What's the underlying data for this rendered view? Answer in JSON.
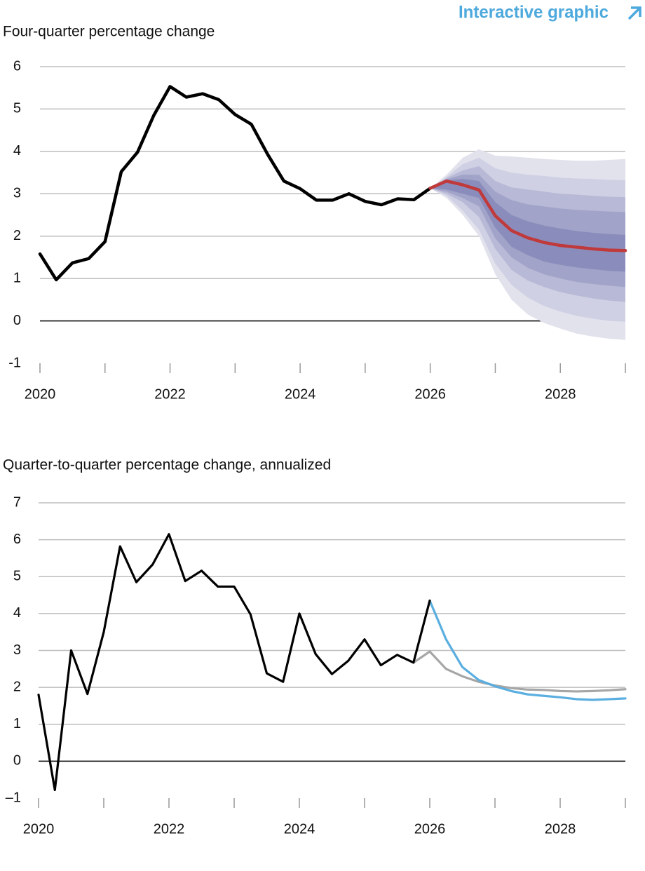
{
  "header": {
    "link": "Interactive graphic"
  },
  "chart_data": [
    {
      "type": "line",
      "title": "Four-quarter percentage change",
      "xlim": [
        2020,
        2029
      ],
      "xticks": [
        2020,
        2022,
        2024,
        2026,
        2028
      ],
      "xminor_ticks": [
        2021,
        2023,
        2025,
        2027,
        2029
      ],
      "ylim": [
        -1,
        6
      ],
      "yticks": [
        -1,
        0,
        1,
        2,
        3,
        4,
        5,
        6
      ],
      "grid": true,
      "zero_line": true,
      "series": [
        {
          "color": "#000000",
          "x": [
            2020,
            2020.25,
            2020.5,
            2020.75,
            2021,
            2021.25,
            2021.5,
            2021.75,
            2022,
            2022.25,
            2022.5,
            2022.75,
            2023,
            2023.25,
            2023.5,
            2023.75,
            2024,
            2024.25,
            2024.5,
            2024.75,
            2025,
            2025.25,
            2025.5,
            2025.75,
            2026
          ],
          "values": [
            1.58,
            0.97,
            1.37,
            1.47,
            1.87,
            3.52,
            3.98,
            4.85,
            5.53,
            5.28,
            5.36,
            5.22,
            4.87,
            4.64,
            3.93,
            3.3,
            3.12,
            2.85,
            2.85,
            3.0,
            2.82,
            2.74,
            2.88,
            2.86,
            3.13
          ]
        },
        {
          "color": "#c0393b",
          "x": [
            2026,
            2026.25,
            2026.5,
            2026.75,
            2027,
            2027.25,
            2027.5,
            2027.75,
            2028,
            2028.25,
            2028.5,
            2028.75,
            2029
          ],
          "values": [
            3.13,
            3.3,
            3.21,
            3.09,
            2.48,
            2.13,
            1.96,
            1.85,
            1.78,
            1.74,
            1.7,
            1.67,
            1.66
          ]
        }
      ],
      "fan": {
        "x": [
          2026,
          2026.25,
          2026.5,
          2026.75,
          2027,
          2027.25,
          2027.5,
          2027.75,
          2028,
          2028.25,
          2028.5,
          2028.75,
          2029
        ],
        "bands": [
          {
            "color": "#e2e2ed",
            "upper": [
              3.13,
              3.45,
              3.85,
              4.05,
              3.9,
              3.88,
              3.85,
              3.82,
              3.8,
              3.78,
              3.78,
              3.8,
              3.82
            ],
            "lower": [
              3.13,
              2.9,
              2.5,
              2.0,
              1.1,
              0.5,
              0.15,
              -0.05,
              -0.18,
              -0.3,
              -0.37,
              -0.42,
              -0.45
            ]
          },
          {
            "color": "#cfd0e3",
            "upper": [
              3.13,
              3.4,
              3.7,
              3.85,
              3.6,
              3.5,
              3.45,
              3.42,
              3.38,
              3.36,
              3.35,
              3.33,
              3.32
            ],
            "lower": [
              3.13,
              2.95,
              2.6,
              2.15,
              1.35,
              0.85,
              0.55,
              0.35,
              0.22,
              0.12,
              0.05,
              0.0,
              -0.02
            ]
          },
          {
            "color": "#b8b9d6",
            "upper": [
              3.13,
              3.37,
              3.55,
              3.65,
              3.3,
              3.15,
              3.1,
              3.05,
              3.0,
              2.98,
              2.95,
              2.93,
              2.92
            ],
            "lower": [
              3.13,
              3.0,
              2.8,
              2.45,
              1.7,
              1.2,
              0.95,
              0.8,
              0.68,
              0.6,
              0.53,
              0.48,
              0.45
            ]
          },
          {
            "color": "#a1a3c8",
            "upper": [
              3.13,
              3.34,
              3.45,
              3.45,
              3.05,
              2.85,
              2.75,
              2.7,
              2.65,
              2.62,
              2.6,
              2.58,
              2.57
            ],
            "lower": [
              3.13,
              3.05,
              2.9,
              2.7,
              1.95,
              1.5,
              1.25,
              1.1,
              1.0,
              0.92,
              0.87,
              0.83,
              0.8
            ]
          },
          {
            "color": "#8a8dbb",
            "upper": [
              3.13,
              3.32,
              3.35,
              3.3,
              2.8,
              2.5,
              2.35,
              2.25,
              2.18,
              2.12,
              2.08,
              2.05,
              2.03
            ],
            "lower": [
              3.13,
              3.1,
              3.0,
              2.9,
              2.2,
              1.75,
              1.55,
              1.4,
              1.32,
              1.26,
              1.22,
              1.18,
              1.16
            ]
          }
        ]
      }
    },
    {
      "type": "line",
      "title": "Quarter-to-quarter percentage change, annualized",
      "xlim": [
        2020,
        2029
      ],
      "xticks": [
        2020,
        2022,
        2024,
        2026,
        2028
      ],
      "xminor_ticks": [
        2021,
        2023,
        2025,
        2027,
        2029
      ],
      "ylim": [
        -1,
        7
      ],
      "yticks": [
        {
          "value": -1,
          "label": "–1"
        },
        0,
        1,
        2,
        3,
        4,
        5,
        6,
        7
      ],
      "grid": true,
      "zero_line": true,
      "series": [
        {
          "color": "#a6a6a6",
          "x": [
            2025.75,
            2026,
            2026.25,
            2026.5,
            2026.75,
            2027,
            2027.25,
            2027.5,
            2027.75,
            2028,
            2028.25,
            2028.5,
            2028.75,
            2029
          ],
          "values": [
            2.67,
            2.97,
            2.5,
            2.3,
            2.15,
            2.05,
            1.98,
            1.94,
            1.93,
            1.9,
            1.89,
            1.9,
            1.92,
            1.95
          ]
        },
        {
          "color": "#5aaee0",
          "x": [
            2026,
            2026.25,
            2026.5,
            2026.75,
            2027,
            2027.25,
            2027.5,
            2027.75,
            2028,
            2028.25,
            2028.5,
            2028.75,
            2029
          ],
          "values": [
            4.35,
            3.3,
            2.55,
            2.2,
            2.03,
            1.9,
            1.81,
            1.77,
            1.73,
            1.68,
            1.66,
            1.68,
            1.7
          ]
        },
        {
          "color": "#000000",
          "x": [
            2020,
            2020.25,
            2020.5,
            2020.75,
            2021,
            2021.25,
            2021.5,
            2021.75,
            2022,
            2022.25,
            2022.5,
            2022.75,
            2023,
            2023.25,
            2023.5,
            2023.75,
            2024,
            2024.25,
            2024.5,
            2024.75,
            2025,
            2025.25,
            2025.5,
            2025.75,
            2026
          ],
          "values": [
            1.8,
            -0.78,
            3.0,
            1.82,
            3.5,
            5.82,
            4.85,
            5.33,
            6.15,
            4.88,
            5.16,
            4.73,
            4.73,
            3.98,
            2.38,
            2.15,
            4.0,
            2.9,
            2.36,
            2.72,
            3.3,
            2.6,
            2.88,
            2.67,
            4.35
          ]
        }
      ]
    }
  ]
}
